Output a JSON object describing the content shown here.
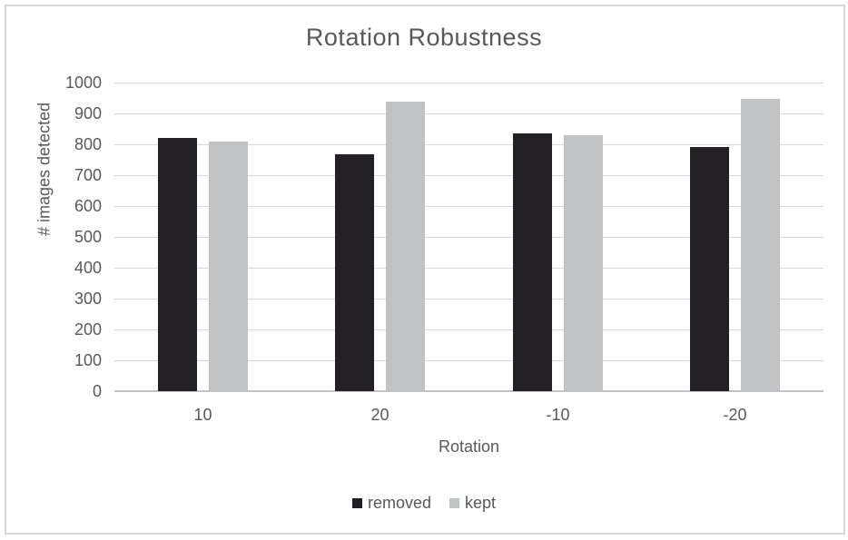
{
  "chart_data": {
    "type": "bar",
    "title": "Rotation Robustness",
    "xlabel": "Rotation",
    "ylabel": "# images detected",
    "categories": [
      "10",
      "20",
      "-10",
      "-20"
    ],
    "series": [
      {
        "name": "removed",
        "color": "#222024",
        "values": [
          820,
          768,
          835,
          790
        ]
      },
      {
        "name": "kept",
        "color": "#c1c2c4",
        "values": [
          810,
          938,
          830,
          948
        ]
      }
    ],
    "ylim": [
      0,
      1000
    ],
    "yticks": [
      0,
      100,
      200,
      300,
      400,
      500,
      600,
      700,
      800,
      900,
      1000
    ],
    "grid": true,
    "legend_position": "bottom"
  },
  "colors": {
    "background": "#ffffff",
    "text": "#595959",
    "gridline": "#d9d9d9",
    "axis_line": "#c3c3c3",
    "frame_border": "#d6d6d6"
  }
}
